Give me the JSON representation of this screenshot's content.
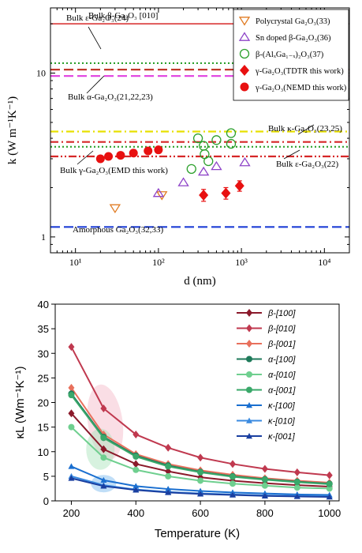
{
  "chart_data": [
    {
      "type": "scatter",
      "xlabel": "d (nm)",
      "ylabel": "k (W m⁻¹K⁻¹)",
      "xscale": "log",
      "yscale": "log",
      "xlim": [
        5,
        20000
      ],
      "ylim": [
        0.8,
        25
      ],
      "xticks": [
        "10¹",
        "10²",
        "10³",
        "10⁴"
      ],
      "yticks": [
        "1",
        "10"
      ],
      "reference_lines": [
        {
          "label": "Bulk β-Ga₂O₃ [010]",
          "y": 20.0,
          "color": "#d62728",
          "style": "solid"
        },
        {
          "label": "Bulk ε-Ga₂O₃(24)",
          "y": 11.5,
          "color": "#2ca02c",
          "style": "dotted"
        },
        {
          "label": "Bulk α-Ga₂O₃(21,22,23)",
          "y": 10.5,
          "color": "#c0392b",
          "style": "dashed"
        },
        {
          "label": "",
          "y": 9.6,
          "color": "#e040e0",
          "style": "dashed"
        },
        {
          "label": "Bulk κ-Ga₂O₃(23,25)",
          "y": 4.4,
          "color": "#e8e000",
          "style": "dashdot"
        },
        {
          "label": "",
          "y": 3.8,
          "color": "#d62728",
          "style": "dashdot"
        },
        {
          "label": "Bulk γ-Ga₂O₃(EMD this work)",
          "y": 3.55,
          "color": "#2ca02c",
          "style": "dotted"
        },
        {
          "label": "Bulk ε-Ga₂O₃(22)",
          "y": 3.1,
          "color": "#d62728",
          "style": "dashdotdot"
        },
        {
          "label": "Amorphous Ga₂O₃(32,33)",
          "y": 1.15,
          "color": "#1f3fd6",
          "style": "dashed"
        }
      ],
      "series": [
        {
          "name": "Polycrystal Ga₂O₃(33)",
          "marker": "triangle-down-open",
          "color": "#e07b22",
          "points": [
            [
              30,
              1.5
            ],
            [
              110,
              1.8
            ]
          ]
        },
        {
          "name": "Sn doped β-Ga₂O₃(36)",
          "marker": "triangle-up-open",
          "color": "#8e44c8",
          "points": [
            [
              100,
              1.85
            ],
            [
              200,
              2.15
            ],
            [
              350,
              2.5
            ],
            [
              500,
              2.7
            ],
            [
              1100,
              2.85
            ]
          ]
        },
        {
          "name": "β-(AlₓGa₁₋ₓ)₂O₃(37)",
          "marker": "circle-open",
          "color": "#2ca02c",
          "points": [
            [
              250,
              2.6
            ],
            [
              300,
              4.0
            ],
            [
              350,
              3.6
            ],
            [
              360,
              3.2
            ],
            [
              400,
              2.9
            ],
            [
              500,
              3.9
            ],
            [
              750,
              4.3
            ],
            [
              750,
              3.7
            ]
          ]
        },
        {
          "name": "γ-Ga₂O₃(TDTR this work)",
          "marker": "diamond-filled",
          "color": "#e81010",
          "points": [
            [
              350,
              1.8
            ],
            [
              650,
              1.85
            ],
            [
              950,
              2.05
            ]
          ],
          "errors": [
            0.15,
            0.15,
            0.15
          ]
        },
        {
          "name": "γ-Ga₂O₃(NEMD this work)",
          "marker": "circle-filled",
          "color": "#e81010",
          "points": [
            [
              20,
              3.0
            ],
            [
              25,
              3.1
            ],
            [
              35,
              3.15
            ],
            [
              50,
              3.25
            ],
            [
              75,
              3.35
            ],
            [
              100,
              3.4
            ]
          ]
        }
      ]
    },
    {
      "type": "line",
      "xlabel": "Temperature (K)",
      "ylabel": "κL (Wm⁻¹K⁻¹)",
      "xlim": [
        150,
        1030
      ],
      "ylim": [
        0,
        40
      ],
      "xticks": [
        200,
        400,
        600,
        800,
        1000
      ],
      "yticks": [
        0,
        5,
        10,
        15,
        20,
        25,
        30,
        35,
        40
      ],
      "x": [
        200,
        300,
        400,
        500,
        600,
        700,
        800,
        900,
        1000
      ],
      "series": [
        {
          "name": "β-[100]",
          "color": "#8b1a2b",
          "marker": "diamond",
          "values": [
            17.8,
            10.5,
            7.5,
            6.0,
            4.8,
            4.1,
            3.6,
            3.2,
            2.9
          ]
        },
        {
          "name": "β-[010]",
          "color": "#c0394f",
          "marker": "diamond",
          "values": [
            31.3,
            18.8,
            13.5,
            10.8,
            8.8,
            7.5,
            6.5,
            5.8,
            5.2
          ]
        },
        {
          "name": "β-[001]",
          "color": "#e8705c",
          "marker": "diamond",
          "values": [
            23.0,
            13.5,
            9.5,
            7.5,
            6.2,
            5.3,
            4.6,
            4.1,
            3.7
          ]
        },
        {
          "name": "α-[100]",
          "color": "#1e7a5a",
          "marker": "circle",
          "values": [
            21.8,
            13.0,
            9.2,
            7.2,
            5.9,
            5.0,
            4.4,
            3.9,
            3.5
          ]
        },
        {
          "name": "α-[010]",
          "color": "#6fcf8f",
          "marker": "circle",
          "values": [
            15.0,
            8.8,
            6.3,
            5.0,
            4.1,
            3.5,
            3.1,
            2.7,
            2.5
          ]
        },
        {
          "name": "α-[001]",
          "color": "#3aa86a",
          "marker": "circle",
          "values": [
            21.5,
            12.8,
            9.0,
            7.0,
            5.8,
            4.9,
            4.3,
            3.8,
            3.4
          ]
        },
        {
          "name": "κ-[100]",
          "color": "#1a6fd0",
          "marker": "triangle",
          "values": [
            7.0,
            4.2,
            3.0,
            2.4,
            2.0,
            1.7,
            1.5,
            1.3,
            1.2
          ]
        },
        {
          "name": "κ-[010]",
          "color": "#3a8ae0",
          "marker": "triangle",
          "values": [
            5.0,
            3.2,
            2.3,
            1.8,
            1.5,
            1.3,
            1.1,
            1.0,
            0.9
          ]
        },
        {
          "name": "κ-[001]",
          "color": "#1a3fa0",
          "marker": "triangle",
          "values": [
            4.6,
            3.0,
            2.2,
            1.7,
            1.4,
            1.2,
            1.0,
            0.9,
            0.8
          ]
        }
      ]
    }
  ]
}
